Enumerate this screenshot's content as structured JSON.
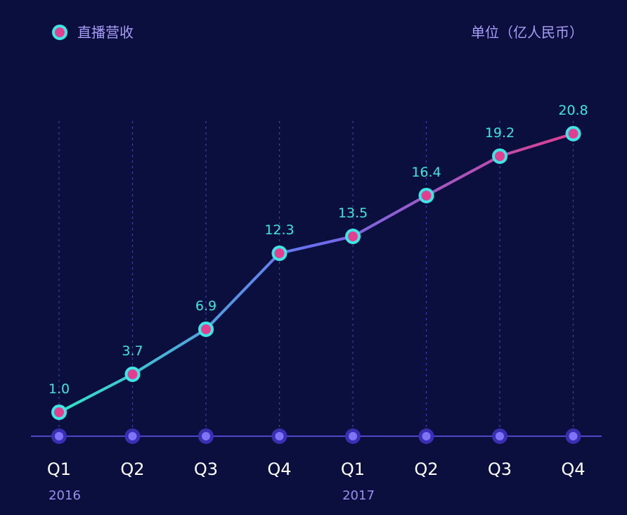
{
  "chart_data": {
    "type": "line",
    "legend": {
      "label": "直播营收",
      "placement": "top-left"
    },
    "unit": "单位（亿人民币）",
    "categories": [
      "Q1",
      "Q2",
      "Q3",
      "Q4",
      "Q1",
      "Q2",
      "Q3",
      "Q4"
    ],
    "years": [
      {
        "label": "2016",
        "at_index": 0
      },
      {
        "label": "2017",
        "at_index": 4
      }
    ],
    "series": [
      {
        "name": "直播营收",
        "values": [
          1.0,
          3.7,
          6.9,
          12.3,
          13.5,
          16.4,
          19.2,
          20.8
        ],
        "value_labels": [
          "1.0",
          "3.7",
          "6.9",
          "12.3",
          "13.5",
          "16.4",
          "19.2",
          "20.8"
        ]
      }
    ],
    "ylim": [
      0,
      22
    ],
    "grid": "vertical-dotted",
    "colors": {
      "background": "#0b0f3e",
      "line_start": "#2ee6c8",
      "line_mid": "#6b6cf0",
      "line_end": "#e0408f",
      "marker_ring": "#3ee6e6",
      "marker_center": "#e0408f",
      "value_label": "#3ee6da",
      "axis": "#4f46c8",
      "axis_dot": "#7f73f7"
    }
  }
}
